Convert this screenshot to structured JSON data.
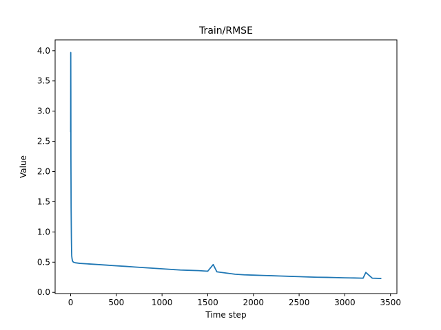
{
  "chart_data": {
    "type": "line",
    "title": "Train/RMSE",
    "xlabel": "Time step",
    "ylabel": "Value",
    "xlim": [
      -170,
      3570
    ],
    "ylim": [
      -0.02,
      4.18
    ],
    "xticks": [
      0,
      500,
      1000,
      1500,
      2000,
      2500,
      3000,
      3500
    ],
    "yticks": [
      0.0,
      0.5,
      1.0,
      1.5,
      2.0,
      2.5,
      3.0,
      3.5,
      4.0
    ],
    "xtick_labels": [
      "0",
      "500",
      "1000",
      "1500",
      "2000",
      "2500",
      "3000",
      "3500"
    ],
    "ytick_labels": [
      "0.0",
      "0.5",
      "1.0",
      "1.5",
      "2.0",
      "2.5",
      "3.0",
      "3.5",
      "4.0"
    ],
    "grid": false,
    "series": [
      {
        "color": "#1f77b4",
        "x": [
          0,
          1,
          2,
          3,
          5,
          8,
          10,
          12,
          15,
          20,
          30,
          50,
          100,
          200,
          300,
          400,
          500,
          600,
          700,
          800,
          900,
          1000,
          1100,
          1200,
          1300,
          1400,
          1500,
          1560,
          1600,
          1700,
          1800,
          1900,
          2000,
          2100,
          2200,
          2300,
          2400,
          2500,
          2600,
          2700,
          2800,
          2900,
          3000,
          3100,
          3200,
          3230,
          3300,
          3400
        ],
        "y": [
          2.65,
          3.97,
          3.3,
          2.2,
          1.4,
          0.9,
          0.7,
          0.6,
          0.56,
          0.52,
          0.5,
          0.49,
          0.48,
          0.47,
          0.46,
          0.45,
          0.44,
          0.43,
          0.42,
          0.41,
          0.4,
          0.39,
          0.38,
          0.37,
          0.365,
          0.36,
          0.35,
          0.46,
          0.34,
          0.32,
          0.3,
          0.29,
          0.285,
          0.28,
          0.275,
          0.27,
          0.265,
          0.26,
          0.255,
          0.25,
          0.248,
          0.245,
          0.24,
          0.238,
          0.235,
          0.33,
          0.235,
          0.23
        ]
      }
    ]
  }
}
